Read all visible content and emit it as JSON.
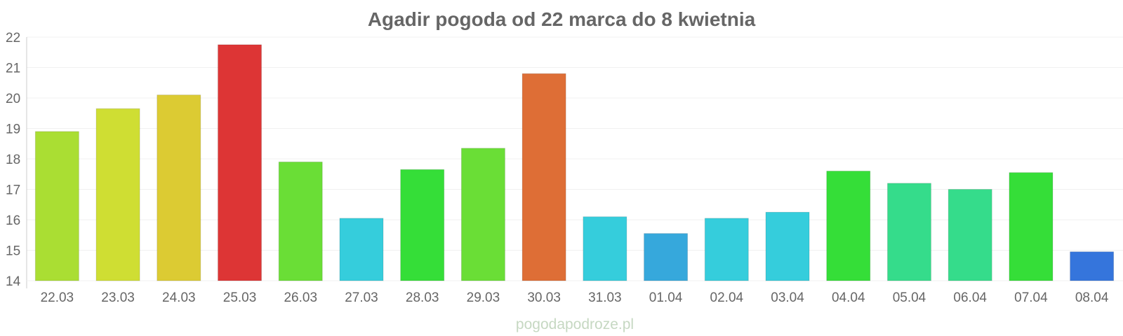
{
  "chart_data": {
    "type": "bar",
    "title": "Agadir pogoda od 22 marca do 8 kwietnia",
    "xlabel": "",
    "ylabel": "",
    "ylim": [
      14,
      22
    ],
    "yticks": [
      "14",
      "15",
      "16",
      "17",
      "18",
      "19",
      "20",
      "21",
      "22"
    ],
    "grid": true,
    "legend": "none",
    "categories": [
      "22.03",
      "23.03",
      "24.03",
      "25.03",
      "26.03",
      "27.03",
      "28.03",
      "29.03",
      "30.03",
      "31.03",
      "01.04",
      "02.04",
      "03.04",
      "04.04",
      "05.04",
      "06.04",
      "07.04",
      "08.04"
    ],
    "values": [
      18.9,
      19.65,
      20.1,
      21.75,
      17.9,
      16.05,
      17.65,
      18.35,
      20.8,
      16.1,
      15.55,
      16.05,
      16.25,
      17.6,
      17.2,
      17.0,
      17.55,
      14.95
    ],
    "colors": [
      "#aade33",
      "#cfde33",
      "#dccb33",
      "#dd3535",
      "#6ade36",
      "#35cddc",
      "#35de38",
      "#6ade36",
      "#de6e36",
      "#35cddc",
      "#36a8dc",
      "#35cddc",
      "#35cddc",
      "#35de38",
      "#35dc8b",
      "#35dc8b",
      "#35de38",
      "#3575dc"
    ]
  },
  "watermark": "pogodapodroze.pl"
}
